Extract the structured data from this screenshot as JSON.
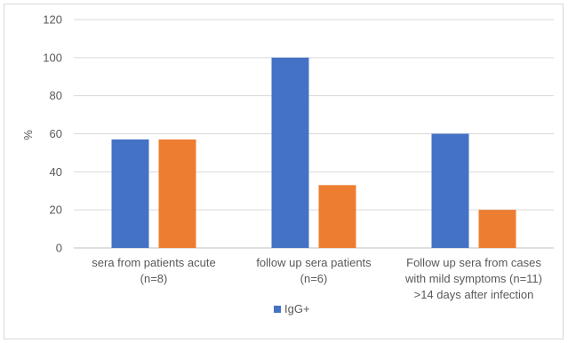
{
  "chart_data": {
    "type": "bar",
    "title": "",
    "xlabel": "",
    "ylabel": "%",
    "ylim": [
      0,
      120
    ],
    "yticks": [
      0,
      20,
      40,
      60,
      80,
      100,
      120
    ],
    "grid": true,
    "legend_position": "bottom",
    "categories": [
      [
        "sera from patients acute",
        "(n=8)"
      ],
      [
        "follow up sera patients",
        "(n=6)"
      ],
      [
        "Follow up sera from cases",
        "with mild symptoms  (n=11)",
        ">14 days after infection"
      ]
    ],
    "series": [
      {
        "name": "IgG+",
        "color": "#4472C4",
        "values": [
          57,
          100,
          60
        ]
      },
      {
        "name": "",
        "color": "#ED7D31",
        "values": [
          57,
          33,
          20
        ]
      }
    ]
  }
}
